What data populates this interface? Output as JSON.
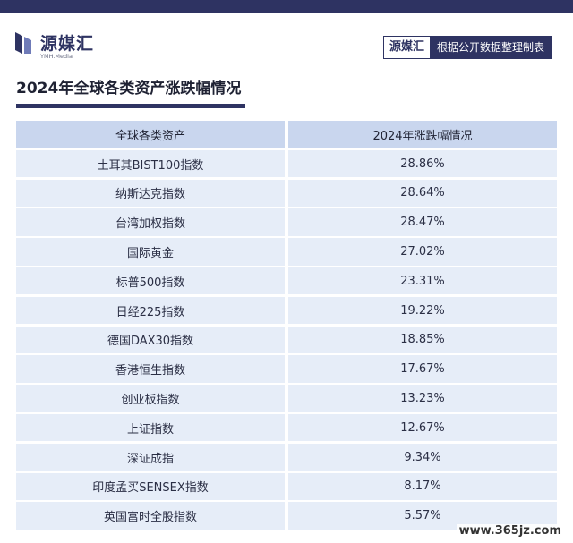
{
  "brand": {
    "name": "源媒汇",
    "sub": "YMH.Media"
  },
  "tag": {
    "brand": "源媒汇",
    "text": "根据公开数据整理制表"
  },
  "title": "2024年全球各类资产涨跌幅情况",
  "table": {
    "headers": [
      "全球各类资产",
      "2024年涨跌幅情况"
    ],
    "rows": [
      {
        "asset": "土耳其BIST100指数",
        "change": "28.86%"
      },
      {
        "asset": "纳斯达克指数",
        "change": "28.64%"
      },
      {
        "asset": "台湾加权指数",
        "change": "28.47%"
      },
      {
        "asset": "国际黄金",
        "change": "27.02%"
      },
      {
        "asset": "标普500指数",
        "change": "23.31%"
      },
      {
        "asset": "日经225指数",
        "change": "19.22%"
      },
      {
        "asset": "德国DAX30指数",
        "change": "18.85%"
      },
      {
        "asset": "香港恒生指数",
        "change": "17.67%"
      },
      {
        "asset": "创业板指数",
        "change": "13.23%"
      },
      {
        "asset": "上证指数",
        "change": "12.67%"
      },
      {
        "asset": "深证成指",
        "change": "9.34%"
      },
      {
        "asset": "印度孟买SENSEX指数",
        "change": "8.17%"
      },
      {
        "asset": "英国富时全股指数",
        "change": "5.57%"
      }
    ]
  },
  "watermark": "www.365jz.com"
}
